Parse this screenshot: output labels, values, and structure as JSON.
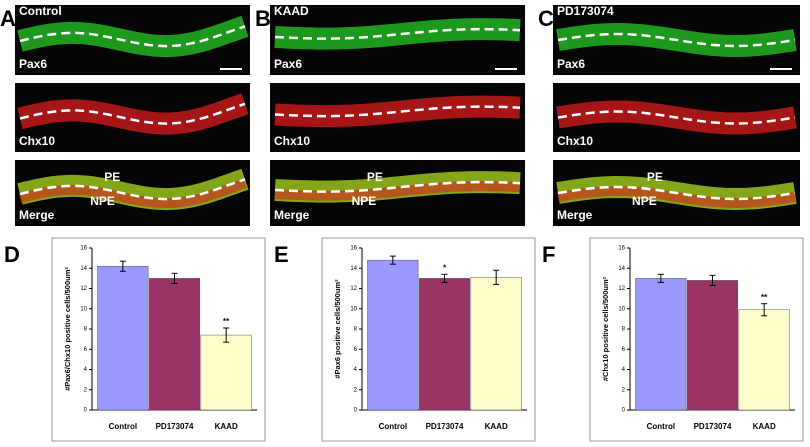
{
  "image_panels": [
    {
      "letter": "A",
      "title": "Control",
      "rows": [
        "Pax6",
        "Chx10",
        "Merge"
      ],
      "annotations": [
        "PE",
        "NPE"
      ]
    },
    {
      "letter": "B",
      "title": "KAAD",
      "rows": [
        "Pax6",
        "Chx10",
        "Merge"
      ],
      "annotations": [
        "PE",
        "NPE"
      ]
    },
    {
      "letter": "C",
      "title": "PD173074",
      "rows": [
        "Pax6",
        "Chx10",
        "Merge"
      ],
      "annotations": [
        "PE",
        "NPE"
      ]
    }
  ],
  "chart_data": [
    {
      "type": "bar",
      "panel_label": "D",
      "ylabel": "#Pax6/Chx10 positive cells/500um²",
      "categories": [
        "Control",
        "PD173074",
        "KAAD"
      ],
      "values": [
        14.2,
        13.0,
        7.4
      ],
      "errors": [
        0.5,
        0.5,
        0.7
      ],
      "colors": [
        "#9999ff",
        "#993366",
        "#ffffcc"
      ],
      "significance": [
        null,
        null,
        "**"
      ],
      "ylim": [
        0,
        16
      ],
      "yticks": [
        0,
        2,
        4,
        6,
        8,
        10,
        12,
        14,
        16
      ],
      "grid": false
    },
    {
      "type": "bar",
      "panel_label": "E",
      "ylabel": "#Pax6 positive cells/500um²",
      "categories": [
        "Control",
        "PD173074",
        "KAAD"
      ],
      "values": [
        14.8,
        13.0,
        13.1
      ],
      "errors": [
        0.4,
        0.4,
        0.7
      ],
      "colors": [
        "#9999ff",
        "#993366",
        "#ffffcc"
      ],
      "significance": [
        null,
        "*",
        null
      ],
      "ylim": [
        0,
        16
      ],
      "yticks": [
        0,
        2,
        4,
        6,
        8,
        10,
        12,
        14,
        16
      ],
      "grid": false
    },
    {
      "type": "bar",
      "panel_label": "F",
      "ylabel": "#Chx10 positive cells/500um²",
      "categories": [
        "Control",
        "PD173074",
        "KAAD"
      ],
      "values": [
        13.0,
        12.8,
        9.9
      ],
      "errors": [
        0.4,
        0.5,
        0.6
      ],
      "colors": [
        "#9999ff",
        "#993366",
        "#ffffcc"
      ],
      "significance": [
        null,
        null,
        "**"
      ],
      "ylim": [
        0,
        16
      ],
      "yticks": [
        0,
        2,
        4,
        6,
        8,
        10,
        12,
        14,
        16
      ],
      "grid": false
    }
  ]
}
